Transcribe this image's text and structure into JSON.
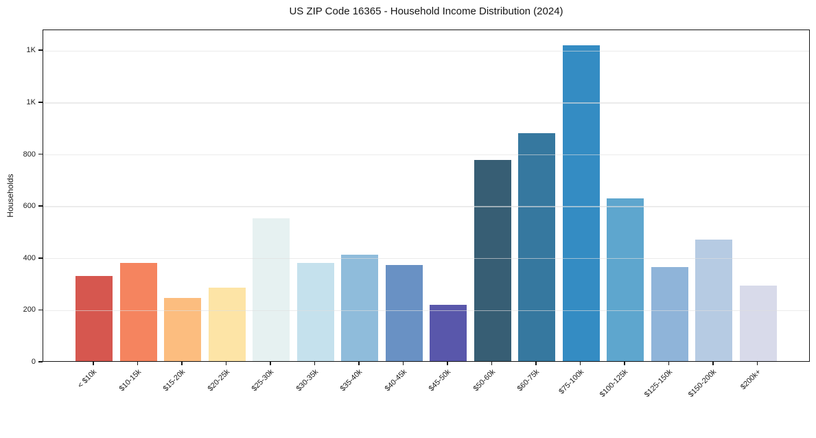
{
  "chart_data": {
    "type": "bar",
    "title": "US ZIP Code 16365 - Household Income Distribution (2024)",
    "xlabel": "",
    "ylabel": "Households",
    "categories": [
      "< $10k",
      "$10-15k",
      "$15-20k",
      "$20-25k",
      "$25-30k",
      "$30-35k",
      "$35-40k",
      "$40-45k",
      "$45-50k",
      "$50-60k",
      "$60-75k",
      "$75-100k",
      "$100-125k",
      "$125-150k",
      "$150-200k",
      "$200k+"
    ],
    "values": [
      327,
      379,
      243,
      284,
      550,
      378,
      411,
      371,
      217,
      776,
      877,
      1216,
      626,
      363,
      469,
      290
    ],
    "bar_colors": [
      "#d6574f",
      "#f5845f",
      "#fcbd7f",
      "#fde4a6",
      "#e6f1f1",
      "#c5e1ed",
      "#8fbcdb",
      "#6991c4",
      "#5957ab",
      "#375e74",
      "#36789f",
      "#348cc3",
      "#5ea6ce",
      "#8fb4d9",
      "#b6cbe3",
      "#d8daea"
    ],
    "ylim": [
      0,
      1280
    ],
    "yticks": [
      {
        "value": 0,
        "label": "0"
      },
      {
        "value": 200,
        "label": "200"
      },
      {
        "value": 400,
        "label": "400"
      },
      {
        "value": 600,
        "label": "600"
      },
      {
        "value": 800,
        "label": "800"
      },
      {
        "value": 1000,
        "label": "1K"
      },
      {
        "value": 1200,
        "label": "1K"
      }
    ],
    "grid": "horizontal-on-top",
    "gridline_color": "#dedede",
    "frame_color": "#141414",
    "background": "#ffffff",
    "legend": "none"
  }
}
